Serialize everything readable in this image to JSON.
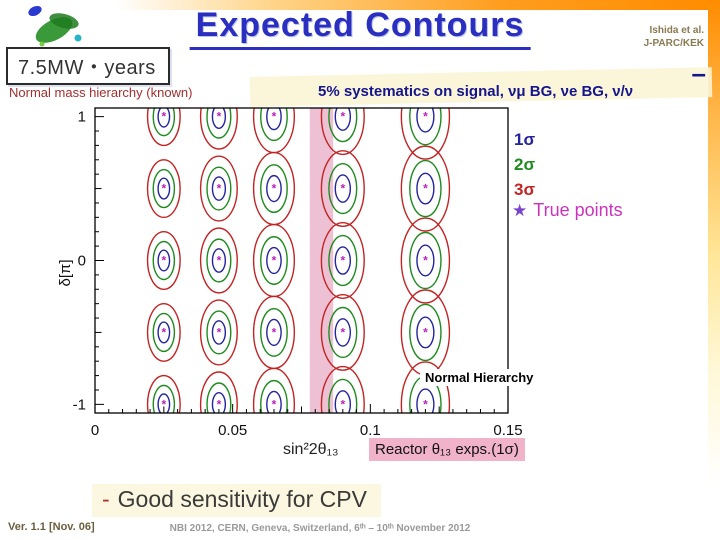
{
  "slide": {
    "title": "Expected Contours",
    "attribution": [
      "Ishida et al.",
      "J-PARC/KEK"
    ],
    "exposure_label": "7.5MW・years",
    "hierarchy_note": "Normal mass hierarchy (known)",
    "systematics_note": "5% systematics on signal, νμ BG, νe BG, ν/ν",
    "nu_bar_dash": "–",
    "true_points_legend": {
      "star": "★",
      "label": "True points"
    },
    "good_sensitivity": {
      "dash": "-",
      "text": "Good sensitivity for CPV"
    },
    "footer": {
      "version": "Ver. 1.1 [Nov. 06]",
      "conference": "NBI 2012, CERN, Geneva, Switzerland, 6ᵗʰ – 10ᵗʰ November 2012"
    },
    "accent_colors": {
      "title_blue": "#2a2fc0",
      "frame_orange": "#ff8c00"
    }
  },
  "chart_data": {
    "type": "scatter",
    "subtype": "confidence-contour-grid",
    "title": "",
    "xlabel": "sin²2θ₁₃",
    "ylabel": "δ[π]",
    "xlim": [
      0,
      0.15
    ],
    "ylim": [
      -1.06,
      1.06
    ],
    "grid": false,
    "x_major_ticks": [
      {
        "v": 0,
        "label": "0"
      },
      {
        "v": 0.05,
        "label": "0.05"
      },
      {
        "v": 0.1,
        "label": "0.1"
      },
      {
        "v": 0.15,
        "label": "0.15"
      }
    ],
    "y_major_ticks": [
      {
        "v": 1,
        "label": "1"
      },
      {
        "v": 0,
        "label": "0"
      },
      {
        "v": -1,
        "label": "-1"
      }
    ],
    "x_minor_step": 0.005,
    "y_minor_step": 0.1,
    "true_points": {
      "x": [
        0.025,
        0.045,
        0.065,
        0.09,
        0.12
      ],
      "delta_pi": [
        1,
        0.5,
        0,
        -0.5,
        -1
      ],
      "marker": "*",
      "color": "#bb22bb"
    },
    "column_scale": [
      0.8,
      0.9,
      1.0,
      1.05,
      1.18
    ],
    "contour_levels": [
      {
        "label": "1σ",
        "color": "#24249c",
        "rx": 0.0026,
        "ry": 0.09
      },
      {
        "label": "2σ",
        "color": "#1f8b1f",
        "rx": 0.0048,
        "ry": 0.165
      },
      {
        "label": "3σ",
        "color": "#c22424",
        "rx": 0.0074,
        "ry": 0.25
      }
    ],
    "legend_position": "right-outside",
    "reactor_band": {
      "x_min": 0.078,
      "x_max": 0.0865,
      "fill": "#e08cb0",
      "opacity": 0.55,
      "label": "Reactor θ₁₃ exps.(1σ)"
    },
    "inner_label": "Normal Hierarchy"
  }
}
